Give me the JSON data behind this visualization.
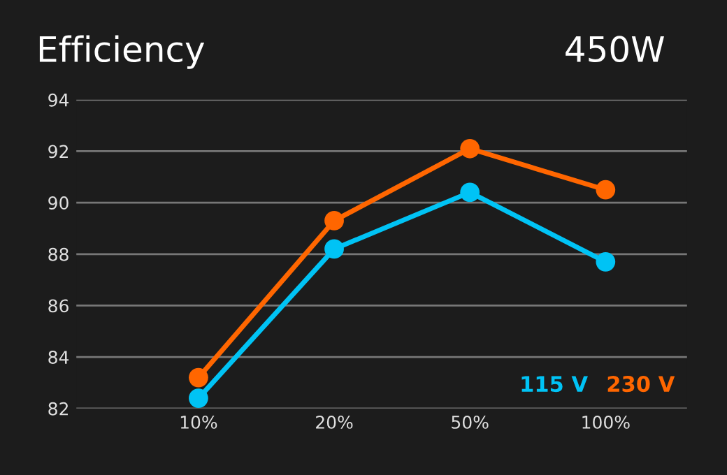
{
  "chart_data": {
    "type": "line",
    "title": "Efficiency",
    "subtitle": "450W",
    "categories": [
      "10%",
      "20%",
      "50%",
      "100%"
    ],
    "series": [
      {
        "name": "115 V",
        "color": "#00c3f5",
        "values": [
          82.4,
          88.2,
          90.4,
          87.7
        ]
      },
      {
        "name": "230 V",
        "color": "#ff6600",
        "values": [
          83.2,
          89.3,
          92.1,
          90.5
        ]
      }
    ],
    "ylim": [
      82,
      94
    ],
    "yticks": [
      82,
      84,
      86,
      88,
      90,
      92,
      94
    ],
    "grid": "y",
    "legend": "bottom right",
    "marker": "circle",
    "line_style": "solid"
  }
}
